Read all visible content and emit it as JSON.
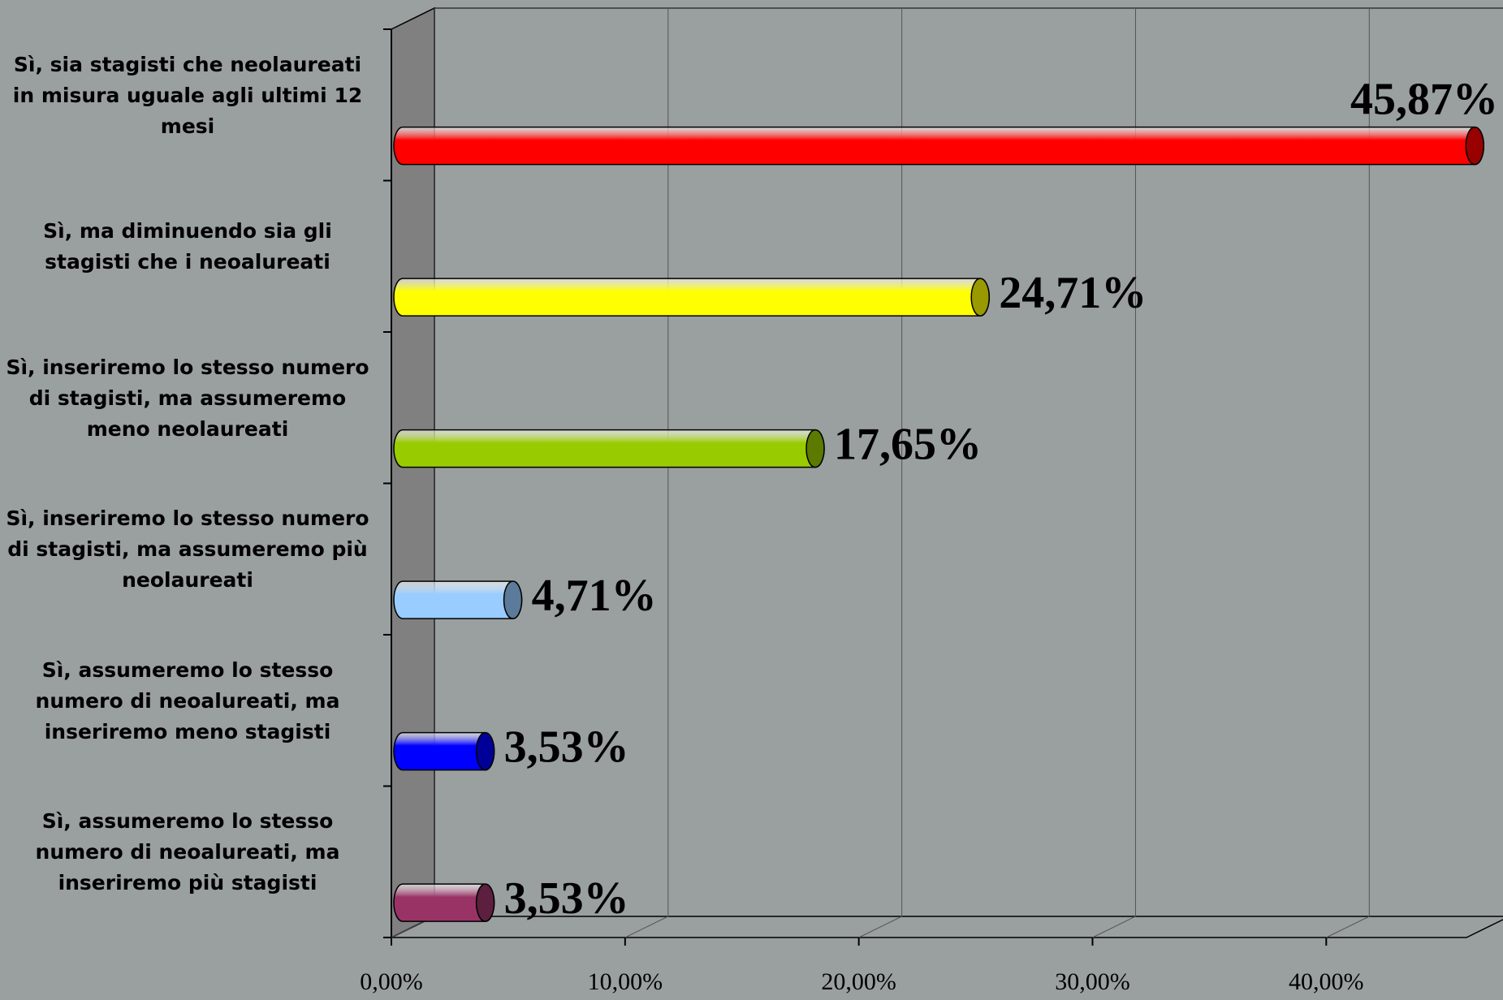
{
  "chart_data": {
    "type": "bar",
    "orientation": "horizontal",
    "categories": [
      "Sì, sia stagisti che neolaureati in misura uguale agli ultimi 12 mesi",
      "Sì, ma diminuendo sia gli stagisti che i neoalureati",
      "Sì, inseriremo lo stesso numero di stagisti, ma assumeremo meno neolaureati",
      "Sì, inseriremo lo stesso numero di stagisti, ma assumeremo più neolaureati",
      "Sì, assumeremo lo stesso numero di neoalureati, ma inseriremo meno stagisti",
      "Sì, assumeremo lo stesso numero di neoalureati, ma inseriremo più stagisti"
    ],
    "values": [
      45.87,
      24.71,
      17.65,
      4.71,
      3.53,
      3.53
    ],
    "value_labels": [
      "45,87%",
      "24,71%",
      "17,65%",
      "4,71%",
      "3,53%",
      "3,53%"
    ],
    "colors": [
      "#ff0000",
      "#ffff00",
      "#99cc00",
      "#99ccff",
      "#0000ff",
      "#993366"
    ],
    "xlim": [
      0,
      46
    ],
    "xticks": [
      {
        "value": 0,
        "label": "0,00%"
      },
      {
        "value": 10,
        "label": "10,00%"
      },
      {
        "value": 20,
        "label": "20,00%"
      },
      {
        "value": 30,
        "label": "30,00%"
      },
      {
        "value": 40,
        "label": "40,00%"
      }
    ],
    "grid": true
  }
}
